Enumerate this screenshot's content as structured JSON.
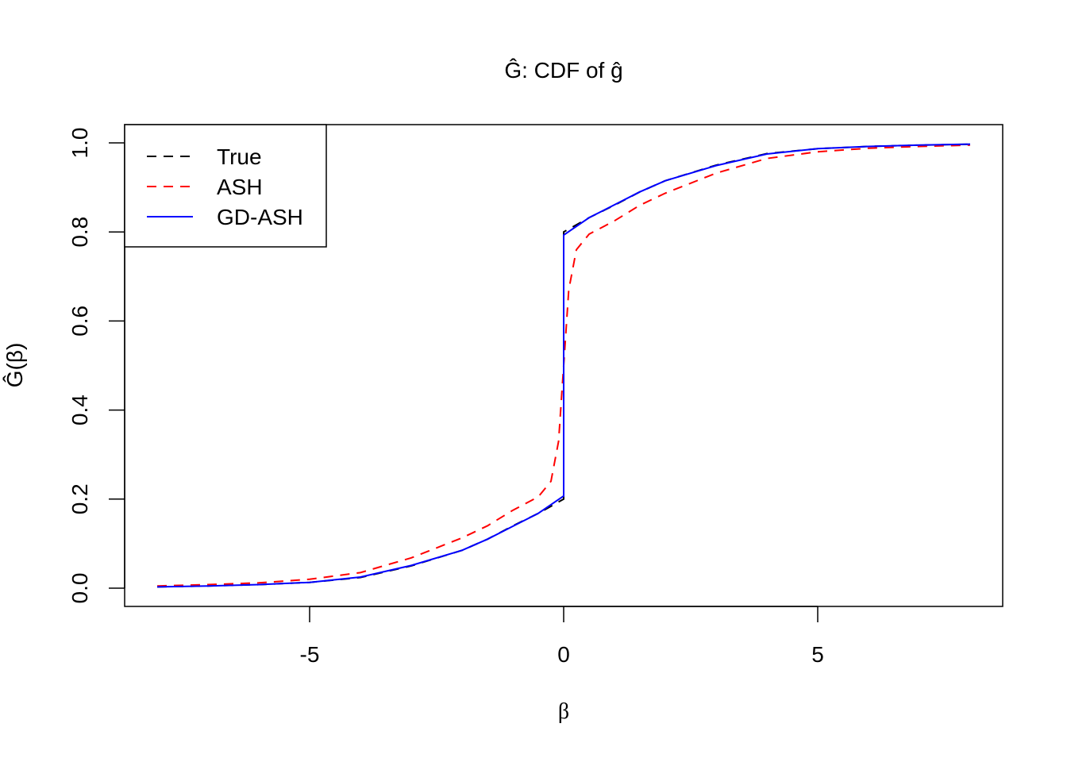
{
  "chart_data": {
    "type": "line",
    "title": "Ĝ: CDF of ĝ",
    "xlabel": "β",
    "ylabel": "Ĝ(β)",
    "xlim": [
      -8,
      8
    ],
    "ylim": [
      0,
      1
    ],
    "xticks": [
      -5,
      0,
      5
    ],
    "xtick_labels": [
      "-5",
      "0",
      "5"
    ],
    "yticks": [
      0,
      0.2,
      0.4,
      0.6,
      0.8,
      1
    ],
    "ytick_labels": [
      "0.0",
      "0.2",
      "0.4",
      "0.6",
      "0.8",
      "1.0"
    ],
    "grid": false,
    "legend_position": "top-left",
    "series": [
      {
        "name": "True",
        "color": "#000000",
        "style": "dashed",
        "x": [
          -8,
          -7,
          -6,
          -5,
          -4,
          -3,
          -2,
          -1.5,
          -1,
          -0.5,
          0,
          0,
          0.5,
          1,
          1.5,
          2,
          3,
          4,
          5,
          6,
          7,
          8
        ],
        "y": [
          0.003,
          0.005,
          0.008,
          0.013,
          0.024,
          0.05,
          0.085,
          0.11,
          0.14,
          0.168,
          0.2,
          0.8,
          0.832,
          0.86,
          0.89,
          0.915,
          0.95,
          0.976,
          0.987,
          0.992,
          0.995,
          0.997
        ]
      },
      {
        "name": "ASH",
        "color": "#ff0000",
        "style": "dashed",
        "x": [
          -8,
          -7,
          -6,
          -5,
          -4,
          -3,
          -2,
          -1.5,
          -1,
          -0.5,
          -0.25,
          -0.1,
          0,
          0.1,
          0.25,
          0.5,
          1,
          1.5,
          2,
          3,
          4,
          5,
          6,
          7,
          8
        ],
        "y": [
          0.005,
          0.008,
          0.012,
          0.02,
          0.035,
          0.068,
          0.113,
          0.14,
          0.175,
          0.205,
          0.24,
          0.33,
          0.5,
          0.67,
          0.76,
          0.795,
          0.825,
          0.86,
          0.887,
          0.932,
          0.965,
          0.98,
          0.988,
          0.992,
          0.995
        ]
      },
      {
        "name": "GD-ASH",
        "color": "#0000ff",
        "style": "solid",
        "x": [
          -8,
          -7,
          -6,
          -5,
          -4,
          -3,
          -2,
          -1.5,
          -1,
          -0.5,
          0,
          0,
          0.5,
          1,
          1.5,
          2,
          3,
          4,
          5,
          6,
          7,
          8
        ],
        "y": [
          0.003,
          0.005,
          0.008,
          0.013,
          0.025,
          0.051,
          0.085,
          0.11,
          0.139,
          0.168,
          0.207,
          0.793,
          0.832,
          0.861,
          0.89,
          0.915,
          0.949,
          0.975,
          0.987,
          0.992,
          0.995,
          0.997
        ]
      }
    ]
  }
}
